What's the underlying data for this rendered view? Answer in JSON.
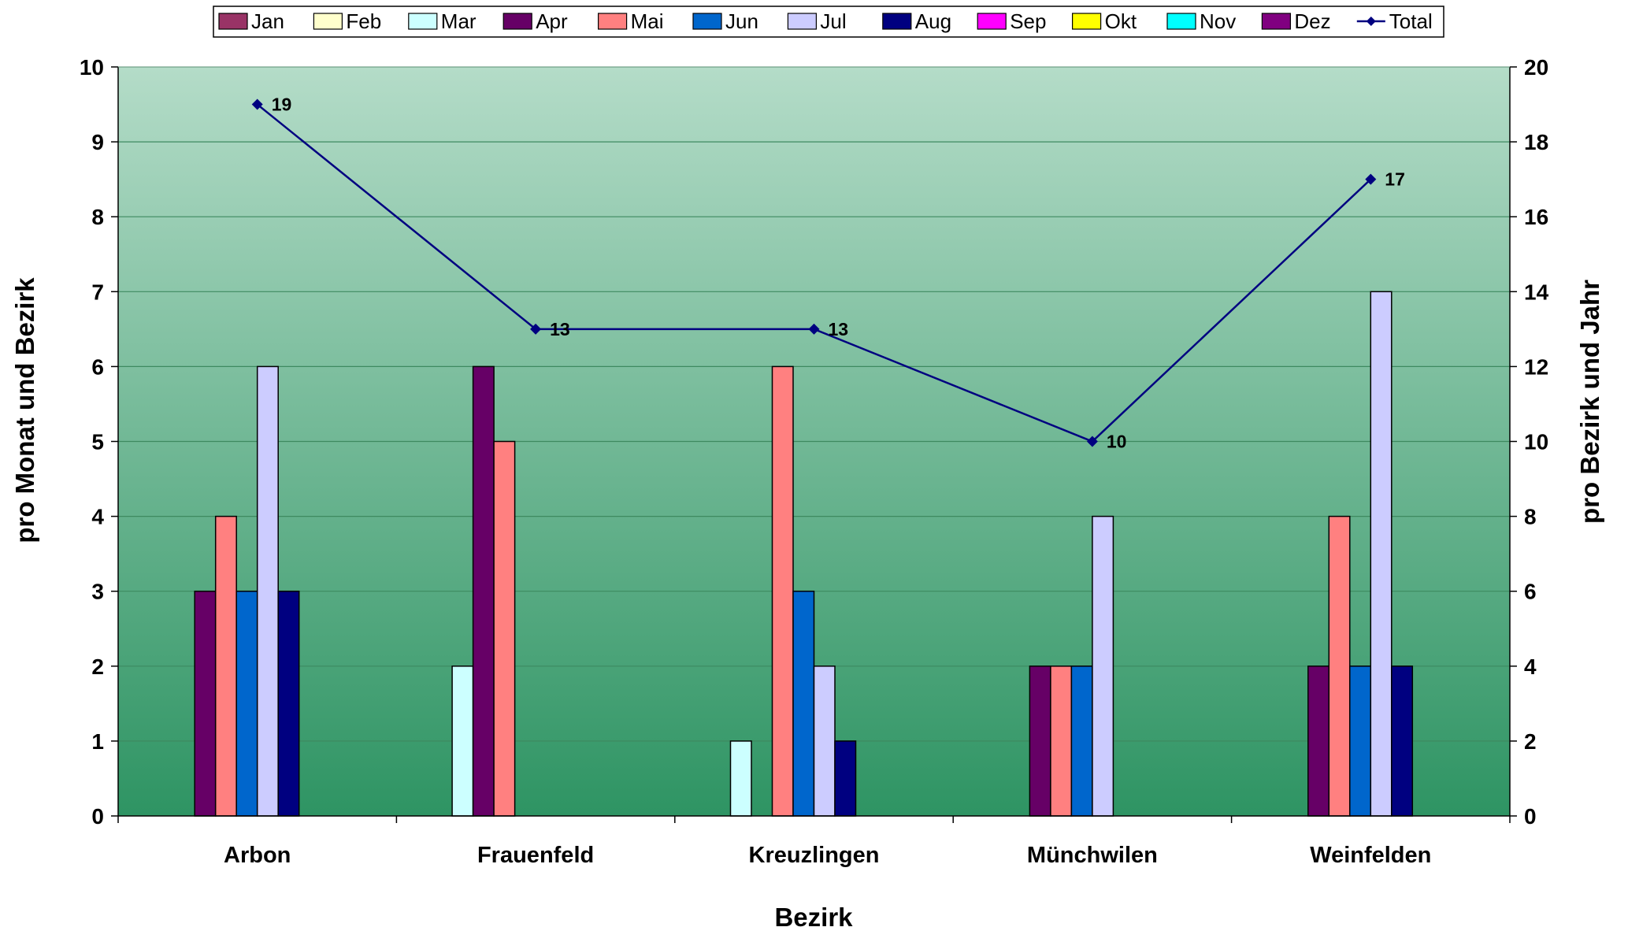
{
  "chart_data": {
    "type": "bar",
    "categories": [
      "Arbon",
      "Frauenfeld",
      "Kreuzlingen",
      "Münchwilen",
      "Weinfelden"
    ],
    "series": [
      {
        "name": "Jan",
        "color": "#993366",
        "values": [
          0,
          0,
          0,
          0,
          0
        ]
      },
      {
        "name": "Feb",
        "color": "#FFFFCC",
        "values": [
          0,
          0,
          0,
          0,
          0
        ]
      },
      {
        "name": "Mar",
        "color": "#CCFFFF",
        "values": [
          0,
          2,
          1,
          0,
          0
        ]
      },
      {
        "name": "Apr",
        "color": "#660066",
        "values": [
          3,
          6,
          0,
          2,
          2
        ]
      },
      {
        "name": "Mai",
        "color": "#FF8080",
        "values": [
          4,
          5,
          6,
          2,
          4
        ]
      },
      {
        "name": "Jun",
        "color": "#0066CC",
        "values": [
          3,
          0,
          3,
          2,
          2
        ]
      },
      {
        "name": "Jul",
        "color": "#CCCCFF",
        "values": [
          6,
          0,
          2,
          4,
          7
        ]
      },
      {
        "name": "Aug",
        "color": "#000080",
        "values": [
          3,
          0,
          1,
          0,
          2
        ]
      },
      {
        "name": "Sep",
        "color": "#FF00FF",
        "values": [
          0,
          0,
          0,
          0,
          0
        ]
      },
      {
        "name": "Okt",
        "color": "#FFFF00",
        "values": [
          0,
          0,
          0,
          0,
          0
        ]
      },
      {
        "name": "Nov",
        "color": "#00FFFF",
        "values": [
          0,
          0,
          0,
          0,
          0
        ]
      },
      {
        "name": "Dez",
        "color": "#800080",
        "values": [
          0,
          0,
          0,
          0,
          0
        ]
      }
    ],
    "line_series": {
      "name": "Total",
      "color": "#000080",
      "axis": "right",
      "values": [
        19,
        13,
        13,
        10,
        17
      ]
    },
    "xlabel": "Bezirk",
    "ylabel": "pro Monat und Bezirk",
    "ylabel_right": "pro Bezirk und Jahr",
    "ylim": [
      0,
      10
    ],
    "ylim_right": [
      0,
      20
    ],
    "yticks": [
      "0",
      "1",
      "2",
      "3",
      "4",
      "5",
      "6",
      "7",
      "8",
      "9",
      "10"
    ],
    "yticks_right": [
      "0",
      "2",
      "4",
      "6",
      "8",
      "10",
      "12",
      "14",
      "16",
      "18",
      "20"
    ],
    "grid": true,
    "legend_position": "top",
    "plot_background": {
      "top": "#B4DCC8",
      "bottom": "#2E9463"
    },
    "gridline_color": "#3E8A60"
  }
}
